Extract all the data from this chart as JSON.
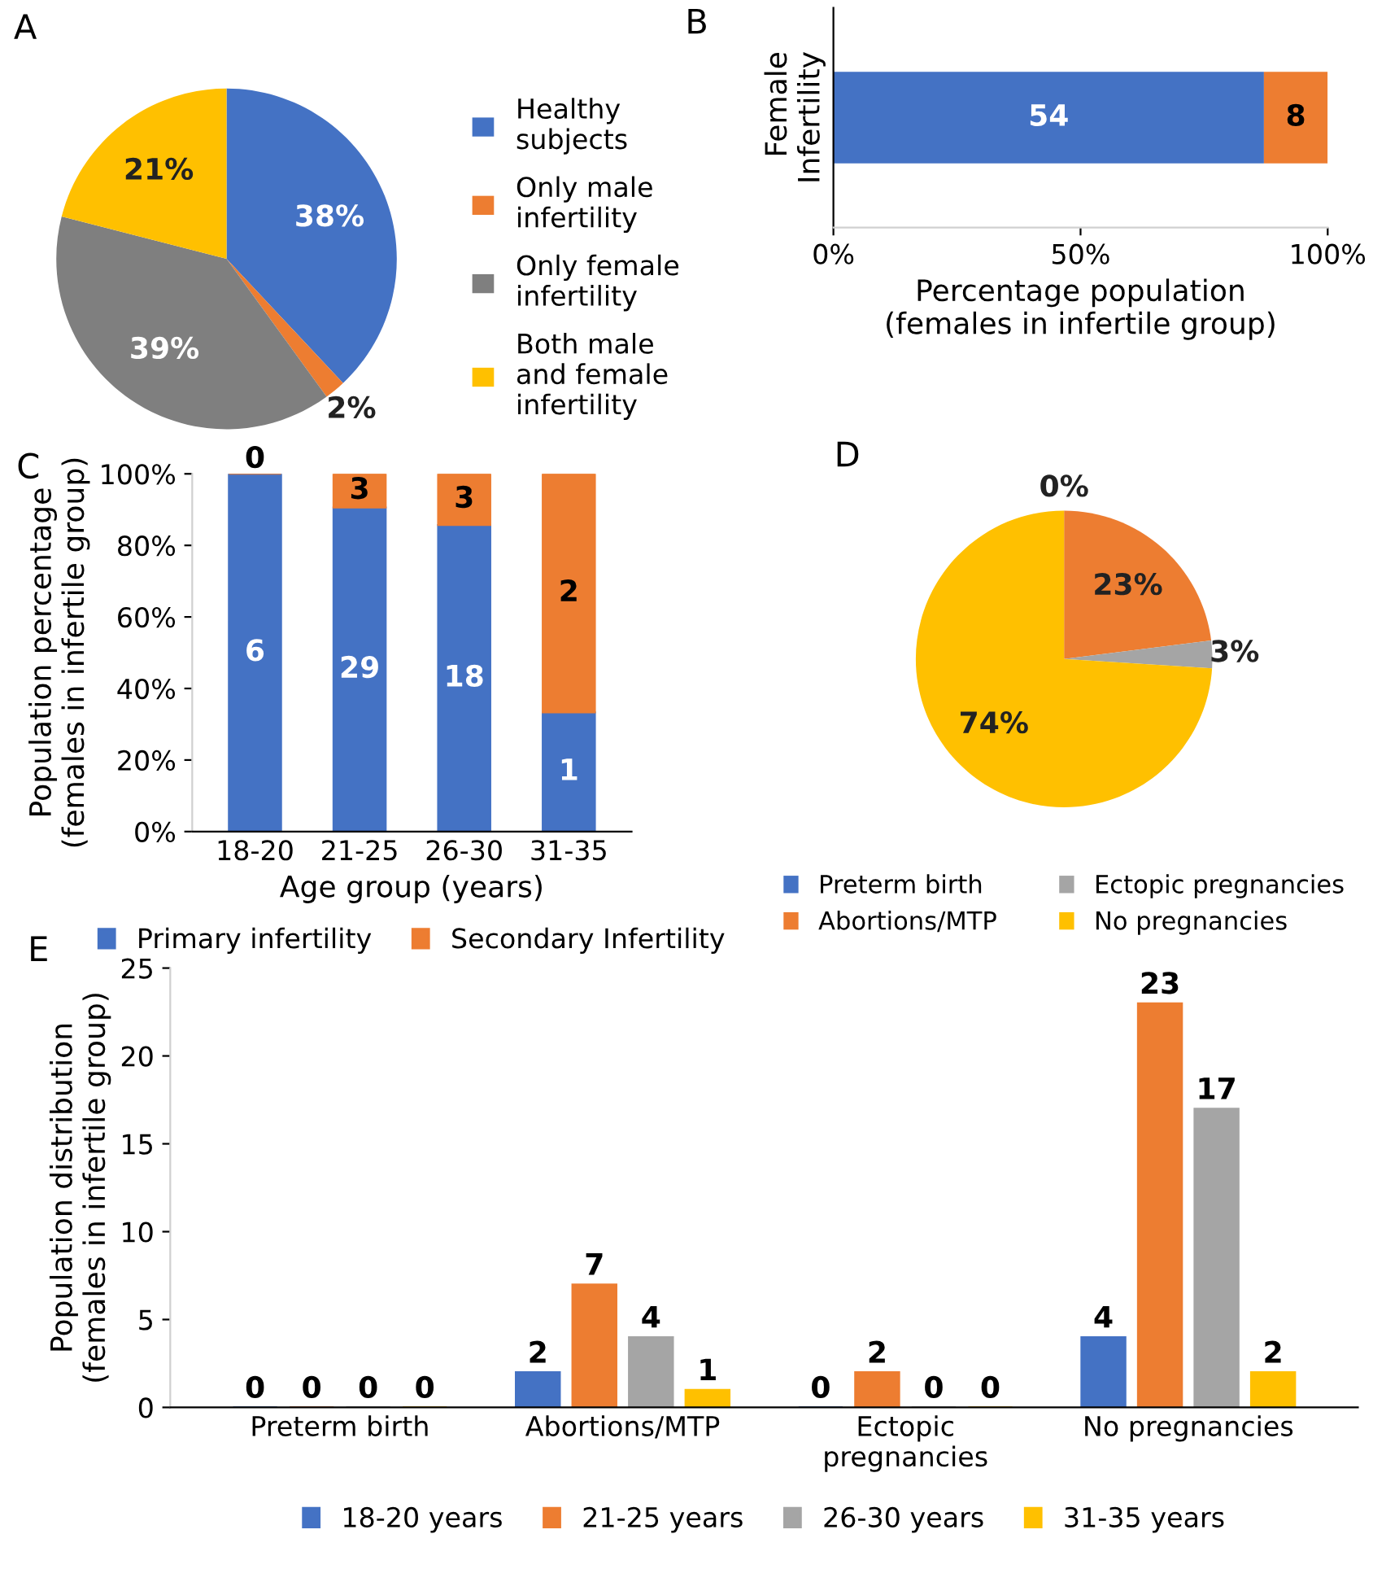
{
  "chart_data": [
    {
      "type": "pie",
      "title": "A",
      "categories": [
        "Healthy\nsubjects",
        "Only male\ninfertility",
        "Only female\ninfertility",
        "Both male\nand female\ninfertility"
      ],
      "values": [
        38,
        2,
        39,
        21
      ],
      "colors": [
        "#4472c4",
        "#ed7d31",
        "#7f7f7f",
        "#ffc000"
      ],
      "value_labels": [
        "38%",
        "2%",
        "39%",
        "21%"
      ],
      "legend": "right"
    },
    {
      "type": "bar",
      "title": "B",
      "orientation": "horizontal",
      "stacked": true,
      "categories": [
        "Female\nInfertility"
      ],
      "series": [
        {
          "color": "#4472c4",
          "values": [
            87.1
          ]
        },
        {
          "color": "#ed7d31",
          "values": [
            12.9
          ]
        }
      ],
      "annotations": [
        "54",
        "8"
      ],
      "xlim": [
        0,
        100
      ],
      "xticks": [
        {
          "value": 0,
          "label": "0%"
        },
        {
          "value": 50,
          "label": "50%"
        },
        {
          "value": 100,
          "label": "100%"
        }
      ],
      "xlabel": "Percentage population\n(females in infertile group)"
    },
    {
      "type": "bar",
      "title": "C",
      "stacked": true,
      "categories": [
        "18-20",
        "21-25",
        "26-30",
        "31-35"
      ],
      "series": [
        {
          "name": "Primary infertility",
          "color": "#4472c4",
          "values": [
            100,
            90.6,
            85.7,
            33.3
          ]
        },
        {
          "name": "Secondary Infertility",
          "color": "#ed7d31",
          "values": [
            0,
            9.4,
            14.3,
            66.7
          ]
        }
      ],
      "annotations": [
        "6",
        "29",
        "18",
        "1",
        "0",
        "3",
        "3",
        "2"
      ],
      "ylim": [
        0,
        100
      ],
      "yticks": [
        {
          "value": 0,
          "label": "0%"
        },
        {
          "value": 20,
          "label": "20%"
        },
        {
          "value": 40,
          "label": "40%"
        },
        {
          "value": 60,
          "label": "60%"
        },
        {
          "value": 80,
          "label": "80%"
        },
        {
          "value": 100,
          "label": "100%"
        }
      ],
      "xlabel": "Age group (years)",
      "ylabel": "Population percentage\n(females in infertile group)",
      "legend": "bottom"
    },
    {
      "type": "pie",
      "title": "D",
      "categories": [
        "Preterm birth",
        "Abortions/MTP",
        "Ectopic pregnancies",
        "No pregnancies"
      ],
      "values": [
        0,
        23,
        3,
        74
      ],
      "colors": [
        "#4472c4",
        "#ed7d31",
        "#a5a5a5",
        "#ffc000"
      ],
      "value_labels": [
        "0%",
        "23%",
        "3%",
        "74%"
      ],
      "legend": "bottom"
    },
    {
      "type": "bar",
      "title": "E",
      "categories": [
        "Preterm birth",
        "Abortions/MTP",
        "Ectopic\npregnancies",
        "No pregnancies"
      ],
      "series": [
        {
          "name": "18-20 years",
          "color": "#4472c4",
          "values": [
            0,
            2,
            0,
            4
          ]
        },
        {
          "name": "21-25 years",
          "color": "#ed7d31",
          "values": [
            0,
            7,
            2,
            23
          ]
        },
        {
          "name": "26-30 years",
          "color": "#a5a5a5",
          "values": [
            0,
            4,
            0,
            17
          ]
        },
        {
          "name": "31-35 years",
          "color": "#ffc000",
          "values": [
            0,
            1,
            0,
            2
          ]
        }
      ],
      "ylim": [
        0,
        25
      ],
      "yticks": [
        0,
        5,
        10,
        15,
        20,
        25
      ],
      "ylabel": "Population distribution\n(females in infertile group)",
      "data_labels": true,
      "legend": "bottom"
    }
  ]
}
